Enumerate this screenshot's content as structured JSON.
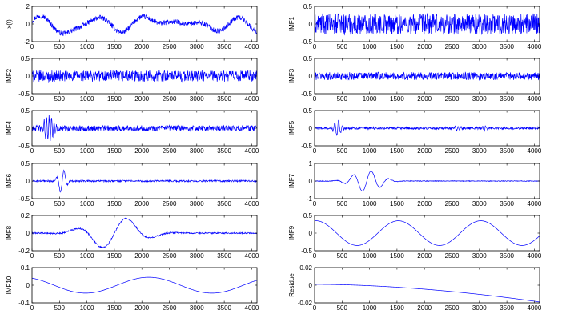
{
  "figure": {
    "line_color": "#0000ff",
    "frame_color": "#000000",
    "background": "#ffffff"
  },
  "chart_data": [
    {
      "type": "line",
      "ylabel": "x(t)",
      "xlim": [
        0,
        4096
      ],
      "ylim": [
        -2,
        2
      ],
      "xticks": [
        "0",
        "500",
        "1000",
        "1500",
        "2000",
        "2500",
        "3000",
        "3500",
        "4000"
      ],
      "yticks": [
        "2",
        "0",
        "-2"
      ],
      "components": [
        [
          0.35,
          1200,
          900
        ],
        [
          0.55,
          900,
          0
        ],
        [
          0.28,
          600,
          0
        ],
        [
          -0.25,
          3000,
          0
        ]
      ],
      "noise_amp": 0.28
    },
    {
      "type": "line",
      "ylabel": "IMF1",
      "xlim": [
        0,
        4096
      ],
      "ylim": [
        -0.5,
        0.5
      ],
      "xticks": [
        "0",
        "500",
        "1000",
        "1500",
        "2000",
        "2500",
        "3000",
        "3500",
        "4000"
      ],
      "yticks": [
        "0.5",
        "0",
        "-0.5"
      ],
      "components": [],
      "noise_amp": 0.3
    },
    {
      "type": "line",
      "ylabel": "IMF2",
      "xlim": [
        0,
        4096
      ],
      "ylim": [
        -0.5,
        0.5
      ],
      "xticks": [
        "0",
        "500",
        "1000",
        "1500",
        "2000",
        "2500",
        "3000",
        "3500",
        "4000"
      ],
      "yticks": [
        "0.5",
        "0",
        "-0.5"
      ],
      "components": [],
      "noise_amp": 0.16
    },
    {
      "type": "line",
      "ylabel": "IMF3",
      "xlim": [
        0,
        4096
      ],
      "ylim": [
        -0.5,
        0.5
      ],
      "xticks": [
        "0",
        "500",
        "1000",
        "1500",
        "2000",
        "2500",
        "3000",
        "3500",
        "4000"
      ],
      "yticks": [
        "0.5",
        "0",
        "-0.5"
      ],
      "components": [],
      "noise_amp": 0.11
    },
    {
      "type": "line",
      "ylabel": "IMF4",
      "xlim": [
        0,
        4096
      ],
      "ylim": [
        -0.5,
        0.5
      ],
      "xticks": [
        "0",
        "500",
        "1000",
        "1500",
        "2000",
        "2500",
        "3000",
        "3500",
        "4000"
      ],
      "yticks": [
        "0.5",
        "0",
        "-0.5"
      ],
      "components": [],
      "noise_amp": 0.08,
      "bursts": [
        {
          "center": 300,
          "width": 110,
          "amp": 0.32,
          "period": 45
        }
      ]
    },
    {
      "type": "line",
      "ylabel": "IMF5",
      "xlim": [
        0,
        4096
      ],
      "ylim": [
        -0.5,
        0.5
      ],
      "xticks": [
        "0",
        "500",
        "1000",
        "1500",
        "2000",
        "2500",
        "3000",
        "3500",
        "4000"
      ],
      "yticks": [
        "0.5",
        "0",
        "-0.5"
      ],
      "components": [],
      "noise_amp": 0.035,
      "bursts": [
        {
          "center": 420,
          "width": 80,
          "amp": 0.22,
          "period": 70
        },
        {
          "center": 2600,
          "width": 60,
          "amp": 0.06,
          "period": 55
        },
        {
          "center": 3100,
          "width": 60,
          "amp": 0.06,
          "period": 55
        }
      ]
    },
    {
      "type": "line",
      "ylabel": "IMF6",
      "xlim": [
        0,
        4096
      ],
      "ylim": [
        -0.5,
        0.5
      ],
      "xticks": [
        "0",
        "500",
        "1000",
        "1500",
        "2000",
        "2500",
        "3000",
        "3500",
        "4000"
      ],
      "yticks": [
        "0.5",
        "0",
        "-0.5"
      ],
      "components": [],
      "noise_amp": 0.025,
      "bursts": [
        {
          "center": 550,
          "width": 90,
          "amp": 0.35,
          "period": 140
        }
      ]
    },
    {
      "type": "line",
      "ylabel": "IMF7",
      "xlim": [
        0,
        4096
      ],
      "ylim": [
        -1,
        1
      ],
      "xticks": [
        "0",
        "500",
        "1000",
        "1500",
        "2000",
        "2500",
        "3000",
        "3500",
        "4000"
      ],
      "yticks": [
        "1",
        "0",
        "-1"
      ],
      "components": [],
      "noise_amp": 0.02,
      "bursts": [
        {
          "center": 950,
          "width": 330,
          "amp": 0.6,
          "period": 330
        }
      ]
    },
    {
      "type": "line",
      "ylabel": "IMF8",
      "xlim": [
        0,
        4096
      ],
      "ylim": [
        -0.2,
        0.2
      ],
      "xticks": [
        "0",
        "500",
        "1000",
        "1500",
        "2000",
        "2500",
        "3000",
        "3500",
        "4000"
      ],
      "yticks": [
        "0.2",
        "0",
        "-0.2"
      ],
      "components": [],
      "noise_amp": 0.008,
      "bursts": [
        {
          "center": 1500,
          "width": 600,
          "amp": 0.19,
          "period": 970
        }
      ]
    },
    {
      "type": "line",
      "ylabel": "IMF9",
      "xlim": [
        0,
        4096
      ],
      "ylim": [
        -0.5,
        0.5
      ],
      "xticks": [
        "0",
        "500",
        "1000",
        "1500",
        "2000",
        "2500",
        "3000",
        "3500",
        "4000"
      ],
      "yticks": [
        "0.5",
        "0",
        "-0.5"
      ],
      "components": [
        [
          0.35,
          1500,
          1150
        ]
      ],
      "noise_amp": 0
    },
    {
      "type": "line",
      "ylabel": "IMF10",
      "xlim": [
        0,
        4096
      ],
      "ylim": [
        -0.1,
        0.1
      ],
      "xticks": [
        "0",
        "500",
        "1000",
        "1500",
        "2000",
        "2500",
        "3000",
        "3500",
        "4000"
      ],
      "yticks": [
        "0.1",
        "0",
        "-0.1"
      ],
      "components": [
        [
          0.045,
          2300,
          1550
        ]
      ],
      "noise_amp": 0
    },
    {
      "type": "line",
      "ylabel": "Residue",
      "xlim": [
        0,
        4096
      ],
      "ylim": [
        -0.02,
        0.02
      ],
      "xticks": [
        "0",
        "500",
        "1000",
        "1500",
        "2000",
        "2500",
        "3000",
        "3500",
        "4000"
      ],
      "yticks": [
        "0.02",
        "0",
        "-0.02"
      ],
      "trend": {
        "start": 0.001,
        "end": -0.019,
        "power": 1.8
      },
      "components": [],
      "noise_amp": 0
    }
  ]
}
